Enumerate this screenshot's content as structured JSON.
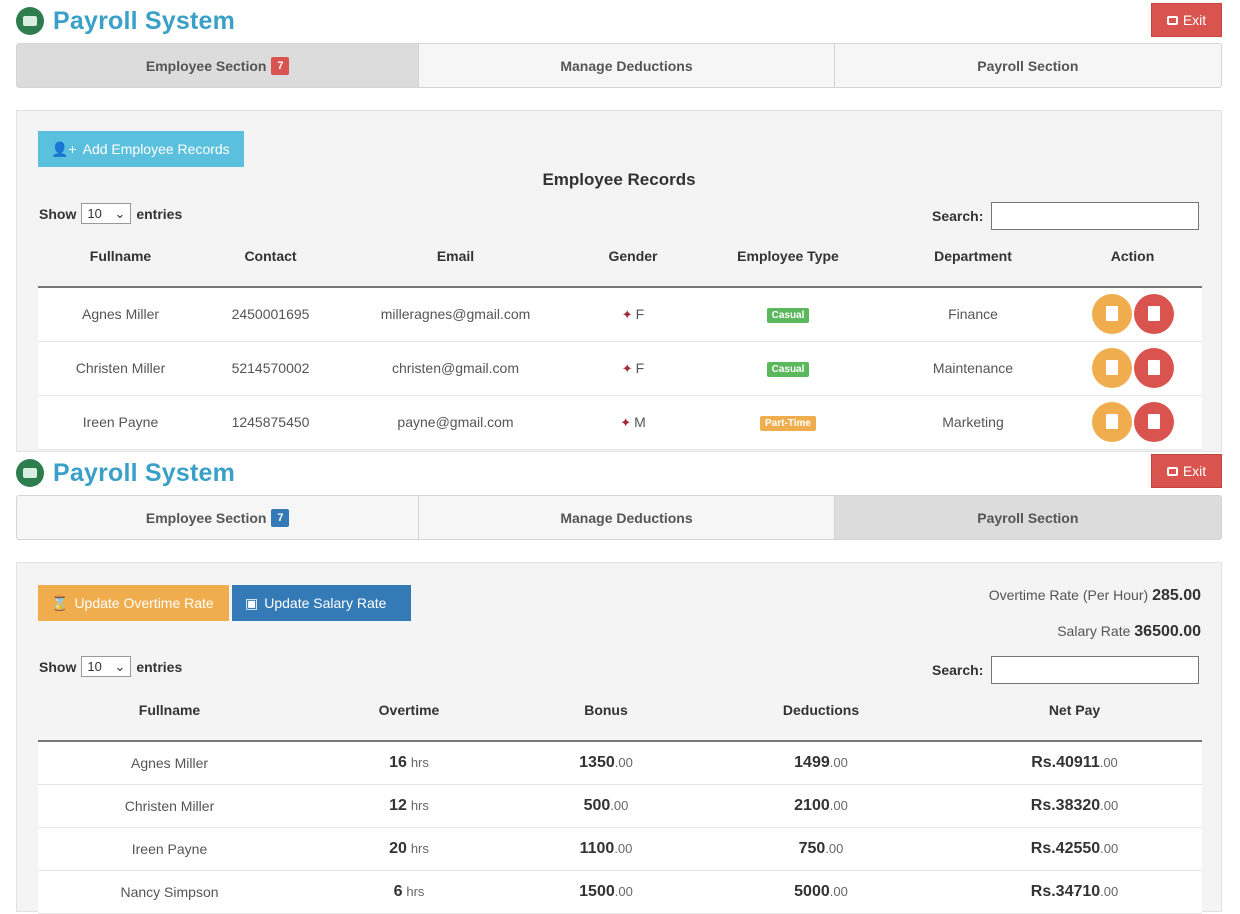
{
  "app": {
    "title": "Payroll System",
    "exit_label": "Exit"
  },
  "tabs": [
    {
      "label": "Employee Section",
      "badge": "7"
    },
    {
      "label": "Manage Deductions"
    },
    {
      "label": "Payroll Section"
    }
  ],
  "employee_view": {
    "add_button": "Add Employee Records",
    "title": "Employee Records",
    "show_label": "Show",
    "entries_value": "10",
    "entries_label": "entries",
    "search_label": "Search:",
    "columns": [
      "Fullname",
      "Contact",
      "Email",
      "Gender",
      "Employee Type",
      "Department",
      "Action"
    ],
    "rows": [
      {
        "name": "Agnes Miller",
        "contact": "2450001695",
        "email": "milleragnes@gmail.com",
        "gender": "F",
        "type": "Casual",
        "department": "Finance"
      },
      {
        "name": "Christen Miller",
        "contact": "5214570002",
        "email": "christen@gmail.com",
        "gender": "F",
        "type": "Casual",
        "department": "Maintenance"
      },
      {
        "name": "Ireen Payne",
        "contact": "1245875450",
        "email": "payne@gmail.com",
        "gender": "M",
        "type": "Part-Time",
        "department": "Marketing"
      }
    ]
  },
  "payroll_view": {
    "overtime_button": "Update Overtime Rate",
    "salary_button": "Update Salary Rate",
    "overtime_rate_label": "Overtime Rate (Per Hour)",
    "overtime_rate_value": "285.00",
    "salary_rate_label": "Salary Rate",
    "salary_rate_value": "36500.00",
    "show_label": "Show",
    "entries_value": "10",
    "entries_label": "entries",
    "search_label": "Search:",
    "columns": [
      "Fullname",
      "Overtime",
      "Bonus",
      "Deductions",
      "Net Pay"
    ],
    "rows": [
      {
        "name": "Agnes Miller",
        "overtime": "16",
        "overtime_unit": "hrs",
        "bonus": "1350",
        "bonus_dec": ".00",
        "deductions": "1499",
        "deductions_dec": ".00",
        "net_pay": "Rs.40911",
        "net_dec": ".00"
      },
      {
        "name": "Christen Miller",
        "overtime": "12",
        "overtime_unit": "hrs",
        "bonus": "500",
        "bonus_dec": ".00",
        "deductions": "2100",
        "deductions_dec": ".00",
        "net_pay": "Rs.38320",
        "net_dec": ".00"
      },
      {
        "name": "Ireen Payne",
        "overtime": "20",
        "overtime_unit": "hrs",
        "bonus": "1100",
        "bonus_dec": ".00",
        "deductions": "750",
        "deductions_dec": ".00",
        "net_pay": "Rs.42550",
        "net_dec": ".00"
      },
      {
        "name": "Nancy Simpson",
        "overtime": "6",
        "overtime_unit": "hrs",
        "bonus": "1500",
        "bonus_dec": ".00",
        "deductions": "5000",
        "deductions_dec": ".00",
        "net_pay": "Rs.34710",
        "net_dec": ".00"
      }
    ]
  }
}
